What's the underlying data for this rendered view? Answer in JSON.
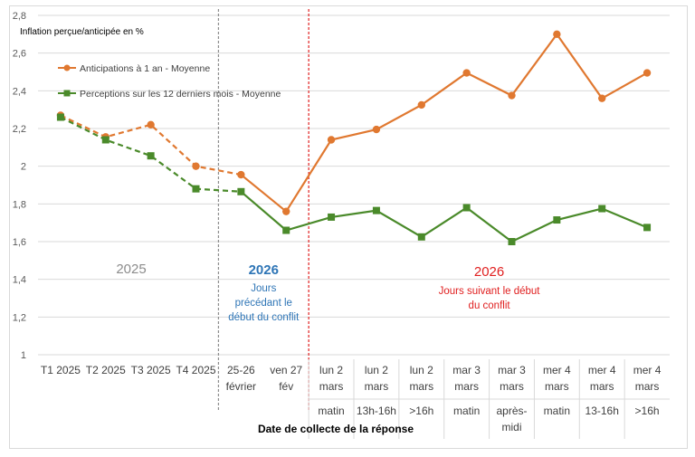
{
  "chart_data": {
    "type": "line",
    "title": "",
    "ylabel": "Inflation perçue/anticipée en %",
    "xlabel": "Date de collecte de la réponse",
    "ylim": [
      1,
      2.8
    ],
    "yticks": [
      "1",
      "1,2",
      "1,4",
      "1,6",
      "1,8",
      "2",
      "2,2",
      "2,4",
      "2,6",
      "2,8"
    ],
    "ytick_values": [
      1,
      1.2,
      1.4,
      1.6,
      1.8,
      2,
      2.2,
      2.4,
      2.6,
      2.8
    ],
    "grid": true,
    "legend_position": "top-left",
    "categories": [
      {
        "l1": "T1 2025",
        "l2": "",
        "l3": "",
        "l4": ""
      },
      {
        "l1": "T2 2025",
        "l2": "",
        "l3": "",
        "l4": ""
      },
      {
        "l1": "T3 2025",
        "l2": "",
        "l3": "",
        "l4": ""
      },
      {
        "l1": "T4 2025",
        "l2": "",
        "l3": "",
        "l4": ""
      },
      {
        "l1": "25-26",
        "l2": "février",
        "l3": "",
        "l4": ""
      },
      {
        "l1": "ven 27",
        "l2": "fév",
        "l3": "",
        "l4": ""
      },
      {
        "l1": "lun 2",
        "l2": "mars",
        "l3": "matin",
        "l4": ""
      },
      {
        "l1": "lun 2",
        "l2": "mars",
        "l3": "13h-16h",
        "l4": ""
      },
      {
        "l1": "lun 2",
        "l2": "mars",
        "l3": ">16h",
        "l4": ""
      },
      {
        "l1": "mar 3",
        "l2": "mars",
        "l3": "matin",
        "l4": ""
      },
      {
        "l1": "mar 3",
        "l2": "mars",
        "l3": "après-",
        "l4": "midi"
      },
      {
        "l1": "mer 4",
        "l2": "mars",
        "l3": "matin",
        "l4": ""
      },
      {
        "l1": "mer 4",
        "l2": "mars",
        "l3": "13-16h",
        "l4": ""
      },
      {
        "l1": "mer 4",
        "l2": "mars",
        "l3": ">16h",
        "l4": ""
      }
    ],
    "series": [
      {
        "name": "Anticipations à 1 an - Moyenne",
        "color": "#e07830",
        "marker": "circle",
        "values": [
          2.27,
          2.155,
          2.22,
          2.0,
          1.955,
          1.76,
          2.14,
          2.195,
          2.325,
          2.495,
          2.375,
          2.7,
          2.36,
          2.495
        ]
      },
      {
        "name": "Perceptions sur les 12 derniers mois - Moyenne",
        "color": "#4a8a2a",
        "marker": "square",
        "values": [
          2.26,
          2.14,
          2.055,
          1.88,
          1.865,
          1.66,
          1.73,
          1.765,
          1.625,
          1.78,
          1.6,
          1.715,
          1.775,
          1.675
        ]
      }
    ],
    "dashed_until_index": 4,
    "annotations": {
      "period_2025": {
        "text": "2025",
        "color": "#8c8c8c"
      },
      "before": {
        "title": "2026",
        "lines": [
          "Jours",
          "précédant le",
          "début du conflit"
        ],
        "color": "#2e75b6"
      },
      "after": {
        "title": "2026",
        "lines": [
          "Jours suivant le début",
          "du conflit"
        ],
        "color": "#e02020"
      }
    },
    "separators": [
      {
        "after_index": 3,
        "color": "#8c8c8c"
      },
      {
        "after_index": 5,
        "color": "#e02020"
      }
    ]
  }
}
